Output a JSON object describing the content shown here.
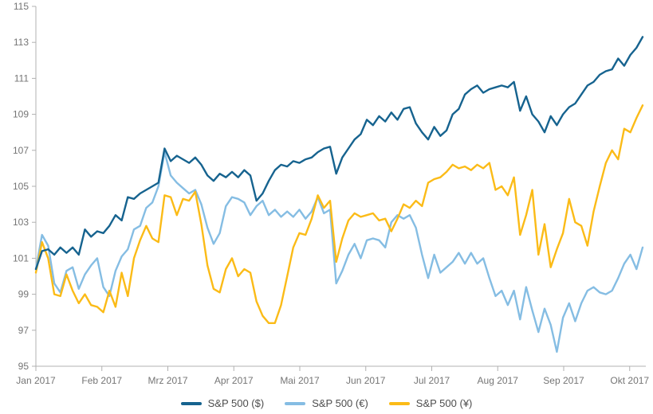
{
  "chart_data": {
    "type": "line",
    "title": "",
    "x_axis": {
      "tick_labels": [
        "Jan 2017",
        "Feb 2017",
        "Mrz 2017",
        "Apr 2017",
        "Mai 2017",
        "Jun 2017",
        "Jul 2017",
        "Aug 2017",
        "Sep 2017",
        "Okt 2017"
      ]
    },
    "y_axis": {
      "min": 95,
      "max": 115,
      "tick_step": 2,
      "index_base": 100
    },
    "grid": false,
    "legend_position": "bottom",
    "series": [
      {
        "name": "S&P 500 ($)",
        "color": "#16638f",
        "values": [
          100.4,
          101.4,
          101.5,
          101.2,
          101.6,
          101.3,
          101.6,
          101.2,
          102.6,
          102.2,
          102.5,
          102.4,
          102.8,
          103.4,
          103.1,
          104.4,
          104.3,
          104.6,
          104.8,
          105.0,
          105.2,
          107.1,
          106.4,
          106.7,
          106.5,
          106.3,
          106.6,
          106.2,
          105.6,
          105.3,
          105.7,
          105.5,
          105.8,
          105.5,
          105.9,
          105.6,
          104.2,
          104.6,
          105.3,
          105.9,
          106.2,
          106.1,
          106.4,
          106.3,
          106.5,
          106.6,
          106.9,
          107.1,
          107.2,
          105.7,
          106.6,
          107.1,
          107.6,
          107.9,
          108.7,
          108.4,
          108.9,
          108.6,
          109.1,
          108.7,
          109.3,
          109.4,
          108.5,
          108.0,
          107.6,
          108.3,
          107.8,
          108.1,
          109.0,
          109.3,
          110.1,
          110.4,
          110.6,
          110.2,
          110.4,
          110.5,
          110.6,
          110.5,
          110.8,
          109.2,
          110.0,
          109.0,
          108.6,
          108.0,
          108.9,
          108.4,
          109.0,
          109.4,
          109.6,
          110.1,
          110.6,
          110.8,
          111.2,
          111.4,
          111.5,
          112.1,
          111.7,
          112.3,
          112.7,
          113.3
        ]
      },
      {
        "name": "S&P 500 (€)",
        "color": "#85bde3",
        "values": [
          100.4,
          102.3,
          101.7,
          99.6,
          99.1,
          100.3,
          100.5,
          99.3,
          100.1,
          100.6,
          101.0,
          99.4,
          98.9,
          100.3,
          101.1,
          101.5,
          102.6,
          102.8,
          103.8,
          104.1,
          105.0,
          106.9,
          105.6,
          105.2,
          104.9,
          104.6,
          104.8,
          104.0,
          102.7,
          101.8,
          102.4,
          103.9,
          104.4,
          104.3,
          104.1,
          103.4,
          103.9,
          104.2,
          103.4,
          103.7,
          103.3,
          103.6,
          103.3,
          103.7,
          103.2,
          103.6,
          104.4,
          103.5,
          103.7,
          99.6,
          100.3,
          101.2,
          101.8,
          101.0,
          102.0,
          102.1,
          102.0,
          101.6,
          103.0,
          103.4,
          103.2,
          103.4,
          102.7,
          101.2,
          99.9,
          101.2,
          100.2,
          100.5,
          100.8,
          101.3,
          100.7,
          101.3,
          100.7,
          101.0,
          99.9,
          98.9,
          99.2,
          98.4,
          99.2,
          97.6,
          99.4,
          98.1,
          96.9,
          98.2,
          97.3,
          95.8,
          97.7,
          98.5,
          97.5,
          98.5,
          99.2,
          99.4,
          99.1,
          99.0,
          99.2,
          99.9,
          100.7,
          101.2,
          100.4,
          101.6
        ]
      },
      {
        "name": "S&P 500 (¥)",
        "color": "#fbbb17",
        "values": [
          100.2,
          101.9,
          101.0,
          99.0,
          98.9,
          100.1,
          99.2,
          98.5,
          99.0,
          98.4,
          98.3,
          98.0,
          99.2,
          98.3,
          100.2,
          98.9,
          101.0,
          102.0,
          102.8,
          102.1,
          101.9,
          104.5,
          104.4,
          103.4,
          104.3,
          104.2,
          104.7,
          102.9,
          100.6,
          99.3,
          99.1,
          100.4,
          101.0,
          100.0,
          100.4,
          100.2,
          98.6,
          97.8,
          97.4,
          97.4,
          98.4,
          100.0,
          101.6,
          102.4,
          102.3,
          103.2,
          104.5,
          103.8,
          104.2,
          100.8,
          102.1,
          103.1,
          103.5,
          103.3,
          103.4,
          103.5,
          103.1,
          103.2,
          102.5,
          103.2,
          104.0,
          103.8,
          104.2,
          103.9,
          105.2,
          105.4,
          105.5,
          105.8,
          106.2,
          106.0,
          106.1,
          105.9,
          106.2,
          106.0,
          106.3,
          104.8,
          105.0,
          104.5,
          105.5,
          102.3,
          103.4,
          104.8,
          101.2,
          102.9,
          100.5,
          101.5,
          102.4,
          104.3,
          103.0,
          102.8,
          101.7,
          103.6,
          105.0,
          106.3,
          107.0,
          106.5,
          108.2,
          108.0,
          108.8,
          109.5
        ]
      }
    ]
  },
  "style": {
    "axis_color": "#b0b0b0",
    "tick_label_color": "#757575",
    "legend_text_color": "#4d4d4d",
    "background": "#ffffff"
  }
}
